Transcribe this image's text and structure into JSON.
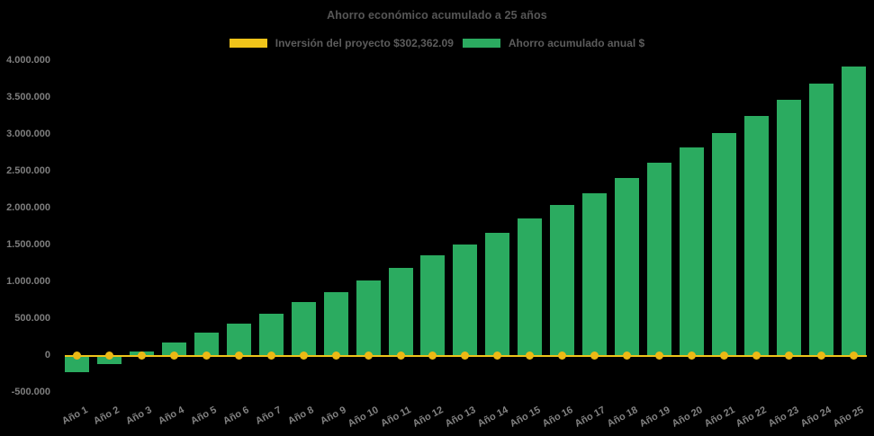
{
  "page": {
    "background": "#000000"
  },
  "title": "Ahorro económico acumulado a 25 años",
  "legend": {
    "items": [
      {
        "label": "Inversión del proyecto $302,362.09",
        "color": "#f0c41a",
        "type": "line"
      },
      {
        "label": "Ahorro acumulado anual $",
        "color": "#2bab60",
        "type": "bar"
      }
    ]
  },
  "chart_data": {
    "type": "bar",
    "title": "Ahorro económico acumulado a 25 años",
    "categories": [
      "Año 1",
      "Año 2",
      "Año 3",
      "Año 4",
      "Año 5",
      "Año 6",
      "Año 7",
      "Año 8",
      "Año 9",
      "Año 10",
      "Año 11",
      "Año 12",
      "Año 13",
      "Año 14",
      "Año 15",
      "Año 16",
      "Año 17",
      "Año 18",
      "Año 19",
      "Año 20",
      "Año 21",
      "Año 22",
      "Año 23",
      "Año 24",
      "Año 25"
    ],
    "series": [
      {
        "name": "Ahorro acumulado anual $",
        "type": "bar",
        "color": "#2bab60",
        "values": [
          -215000,
          -105000,
          55000,
          177000,
          311000,
          442000,
          576000,
          727000,
          861000,
          1030000,
          1197000,
          1360000,
          1508000,
          1675000,
          1868000,
          2046000,
          2212000,
          2420000,
          2618000,
          2835000,
          3025000,
          3252000,
          3470000,
          3700000,
          3932000
        ]
      },
      {
        "name": "Inversión del proyecto $302,362.09",
        "type": "line",
        "color": "#f0c41a",
        "marker_color": "#ecb915",
        "investment_value": "302,362.09",
        "values": [
          0,
          0,
          0,
          0,
          0,
          0,
          0,
          0,
          0,
          0,
          0,
          0,
          0,
          0,
          0,
          0,
          0,
          0,
          0,
          0,
          0,
          0,
          0,
          0,
          0
        ]
      }
    ],
    "y_axis": {
      "tick_labels": [
        "4.000.000",
        "3.500.000",
        "3.000.000",
        "2.500.000",
        "2.000.000",
        "1.500.000",
        "1.000.000",
        "500.000",
        "0",
        "-500.000"
      ],
      "tick_values": [
        4000000,
        3500000,
        3000000,
        2500000,
        2000000,
        1500000,
        1000000,
        500000,
        0,
        -500000
      ],
      "ylim": [
        -620000,
        4150000
      ],
      "grid": false
    },
    "x_axis": {
      "tick_rotation_deg": -28
    }
  }
}
